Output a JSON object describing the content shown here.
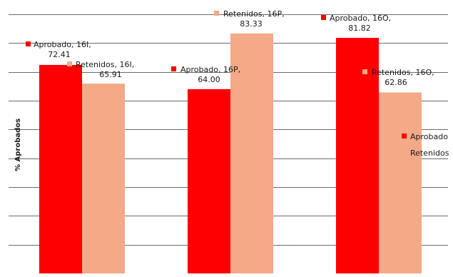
{
  "chart_data": {
    "type": "bar",
    "title": "",
    "xlabel": "",
    "ylabel": "% Aprobados",
    "ylim": [
      0,
      90
    ],
    "grid": true,
    "legend_position": "right",
    "categories": [
      "16I",
      "16P",
      "16O"
    ],
    "series": [
      {
        "name": "Aprobado",
        "color": "#ff0000",
        "values": [
          72.41,
          64.0,
          81.82
        ],
        "data_labels": [
          {
            "line1": "Aprobado, 16I,",
            "line2": "72.41"
          },
          {
            "line1": "Aprobado, 16P,",
            "line2": "64.00"
          },
          {
            "line1": "Aprobado, 16O,",
            "line2": "81.82"
          }
        ]
      },
      {
        "name": "Retenidos",
        "color": "#f4a987",
        "values": [
          65.91,
          83.33,
          62.86
        ],
        "data_labels": [
          {
            "line1": "Retenidos, 16I,",
            "line2": "65.91"
          },
          {
            "line1": "Retenidos, 16P,",
            "line2": "83.33"
          },
          {
            "line1": "Retenidos, 16O,",
            "line2": "62.86"
          }
        ]
      }
    ],
    "legend": [
      {
        "label": "Aprobado",
        "color": "#ff0000"
      },
      {
        "label": "Retenidos",
        "color": "#f4a987"
      }
    ]
  }
}
